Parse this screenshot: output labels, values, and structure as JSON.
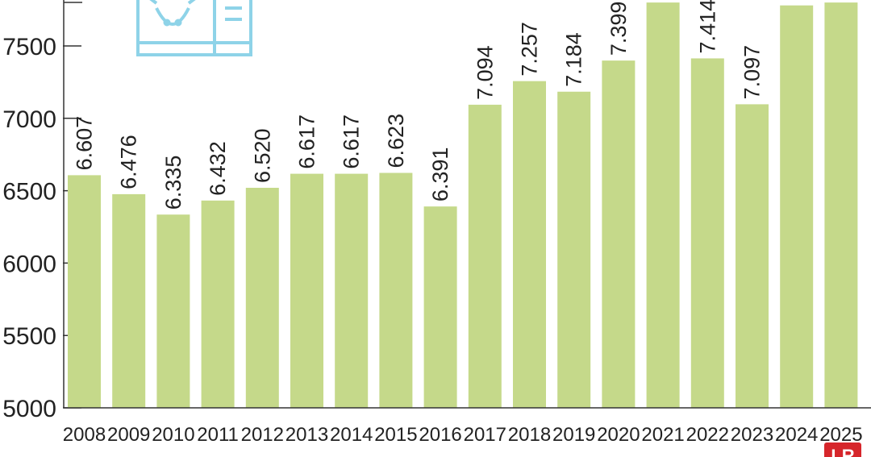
{
  "colors": {
    "bar": "#c5d98a",
    "axis": "#333333",
    "icon": "#8ed3e8",
    "badge": "#d6262b"
  },
  "icon": {
    "name": "cow-head-document-icon"
  },
  "badge": {
    "text": "LR"
  },
  "chart_data": {
    "type": "bar",
    "title": "",
    "xlabel": "",
    "ylabel": "",
    "ylim": [
      5000,
      7800
    ],
    "yticks": [
      5000,
      5500,
      6000,
      6500,
      7000,
      7500
    ],
    "grid": false,
    "categories": [
      "2008",
      "2009",
      "2010",
      "2011",
      "2012",
      "2013",
      "2014",
      "2015",
      "2016",
      "2017",
      "2018",
      "2019",
      "2020",
      "2021",
      "2022",
      "2023",
      "2024",
      "2025"
    ],
    "values": [
      6607,
      6476,
      6335,
      6432,
      6520,
      6617,
      6617,
      6623,
      6391,
      7094,
      7257,
      7184,
      7399,
      7800,
      7414,
      7097,
      7780,
      7800
    ],
    "labels": [
      "6.607",
      "6.476",
      "6.335",
      "6.432",
      "6.520",
      "6.617",
      "6.617",
      "6.623",
      "6.391",
      "7.094",
      "7.257",
      "7.184",
      "7.399",
      "",
      "7.414",
      "7.097",
      "",
      ""
    ]
  }
}
